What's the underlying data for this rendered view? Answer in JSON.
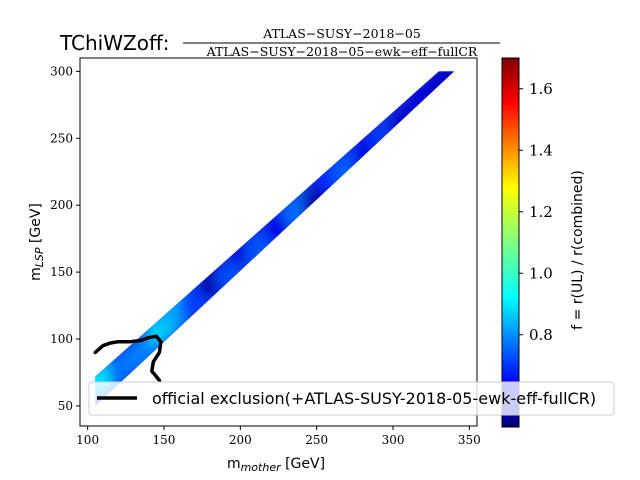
{
  "chart_data": {
    "type": "heatmap",
    "title": "TChiWZoff:",
    "title_fraction": {
      "numerator": "ATLAS−SUSY−2018−05",
      "denominator": "ATLAS−SUSY−2018−05−ewk−eff−fullCR"
    },
    "xlabel": "m",
    "xlabel_sub": "mother",
    "xlabel_unit": " [GeV]",
    "ylabel": "m",
    "ylabel_sub": "LSP",
    "ylabel_unit": " [GeV]",
    "xlim": [
      95,
      355
    ],
    "ylim": [
      35,
      310
    ],
    "xticks": [
      100,
      150,
      200,
      250,
      300,
      350
    ],
    "yticks": [
      50,
      100,
      150,
      200,
      250,
      300
    ],
    "colorbar": {
      "label": "f = r(UL) / r(combined)",
      "range": [
        0.5,
        1.7
      ],
      "ticks": [
        "0.6",
        "0.8",
        "1.0",
        "1.2",
        "1.4",
        "1.6"
      ],
      "tick_values": [
        0.6,
        0.8,
        1.0,
        1.2,
        1.4,
        1.6
      ],
      "colormap": "jet"
    },
    "band": {
      "lower_edge": [
        [
          105,
          50
        ],
        [
          340,
          300
        ]
      ],
      "upper_edge": [
        [
          105,
          72
        ],
        [
          330,
          300
        ]
      ]
    },
    "cells": [
      {
        "x": 110,
        "y": 70,
        "v": 0.92
      },
      {
        "x": 125,
        "y": 80,
        "v": 0.78
      },
      {
        "x": 138,
        "y": 92,
        "v": 0.8
      },
      {
        "x": 150,
        "y": 110,
        "v": 0.9
      },
      {
        "x": 158,
        "y": 122,
        "v": 0.85
      },
      {
        "x": 172,
        "y": 130,
        "v": 0.72
      },
      {
        "x": 185,
        "y": 145,
        "v": 0.55
      },
      {
        "x": 196,
        "y": 150,
        "v": 0.74
      },
      {
        "x": 205,
        "y": 168,
        "v": 0.6
      },
      {
        "x": 215,
        "y": 170,
        "v": 0.75
      },
      {
        "x": 228,
        "y": 185,
        "v": 0.62
      },
      {
        "x": 240,
        "y": 198,
        "v": 0.78
      },
      {
        "x": 252,
        "y": 205,
        "v": 0.55
      },
      {
        "x": 262,
        "y": 222,
        "v": 0.7
      },
      {
        "x": 272,
        "y": 228,
        "v": 0.76
      },
      {
        "x": 285,
        "y": 240,
        "v": 0.62
      },
      {
        "x": 298,
        "y": 250,
        "v": 0.72
      },
      {
        "x": 310,
        "y": 262,
        "v": 0.58
      },
      {
        "x": 322,
        "y": 280,
        "v": 0.6
      },
      {
        "x": 335,
        "y": 292,
        "v": 0.58
      }
    ],
    "exclusion_line": {
      "name": "official exclusion(+ATLAS-SUSY-2018-05-ewk-eff-fullCR)",
      "x": [
        105,
        110,
        115,
        120,
        128,
        135,
        140,
        145,
        148,
        147,
        143,
        142,
        145,
        147
      ],
      "y": [
        90,
        95,
        97,
        98,
        98,
        99,
        101,
        102,
        98,
        90,
        83,
        76,
        72,
        69
      ]
    },
    "legend_placement": "lower-right",
    "grid": false
  },
  "colors": {
    "exclusion_line": "#000000",
    "band_base": "#1a2fe0"
  }
}
